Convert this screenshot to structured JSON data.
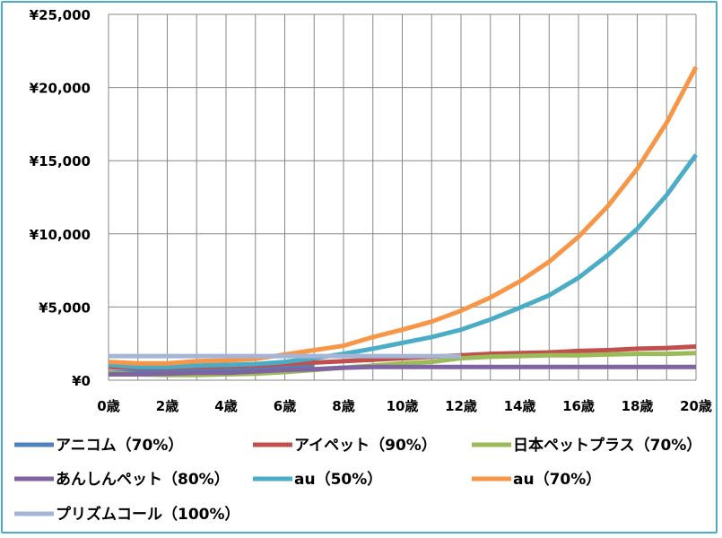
{
  "chart_data": {
    "type": "line",
    "title": "",
    "xlabel": "",
    "ylabel": "",
    "ylim": [
      0,
      25000
    ],
    "x_ticks": [
      "0歳",
      "2歳",
      "4歳",
      "6歳",
      "8歳",
      "10歳",
      "12歳",
      "14歳",
      "16歳",
      "18歳",
      "20歳"
    ],
    "y_ticks": [
      "¥0",
      "¥5,000",
      "¥10,000",
      "¥15,000",
      "¥20,000",
      "¥25,000"
    ],
    "y_tick_values": [
      0,
      5000,
      10000,
      15000,
      20000,
      25000
    ],
    "x": [
      0,
      1,
      2,
      3,
      4,
      5,
      6,
      7,
      8,
      9,
      10,
      11,
      12,
      13,
      14,
      15,
      16,
      17,
      18,
      19,
      20
    ],
    "grid": true,
    "legend_position": "bottom",
    "series": [
      {
        "name": "アニコム（70%）",
        "color": "#4f81bd",
        "values": [
          550,
          550,
          600,
          650,
          700,
          800,
          900,
          1000,
          null,
          null,
          null,
          null,
          null,
          null,
          null,
          null,
          null,
          null,
          null,
          null,
          null
        ]
      },
      {
        "name": "アイペット（90%）",
        "color": "#c0504d",
        "values": [
          900,
          850,
          850,
          900,
          950,
          1000,
          1100,
          1200,
          1300,
          1400,
          1500,
          1600,
          1700,
          1800,
          1850,
          1900,
          2000,
          2050,
          2150,
          2200,
          2300
        ]
      },
      {
        "name": "日本ペットプラス（70%）",
        "color": "#9bbb59",
        "values": [
          500,
          400,
          350,
          350,
          400,
          450,
          550,
          700,
          850,
          1000,
          1150,
          1250,
          1500,
          1600,
          1650,
          1700,
          1700,
          1750,
          1800,
          1800,
          1850
        ]
      },
      {
        "name": "あんしんペット（80%）",
        "color": "#8064a2",
        "values": [
          400,
          400,
          450,
          500,
          500,
          600,
          700,
          750,
          850,
          900,
          900,
          900,
          900,
          900,
          900,
          900,
          900,
          900,
          900,
          900,
          900
        ]
      },
      {
        "name": "au（50%）",
        "color": "#4bacc6",
        "values": [
          1050,
          900,
          900,
          1000,
          1050,
          1100,
          1250,
          1500,
          1800,
          2150,
          2550,
          2950,
          3450,
          4150,
          4950,
          5800,
          7000,
          8550,
          10350,
          12650,
          15400
        ]
      },
      {
        "name": "au（70%）",
        "color": "#f79646",
        "values": [
          1250,
          1150,
          1150,
          1300,
          1350,
          1450,
          1750,
          2050,
          2350,
          2950,
          3450,
          4000,
          4750,
          5650,
          6750,
          8100,
          9800,
          11900,
          14450,
          17600,
          21400
        ]
      },
      {
        "name": "プリズムコール（100%）",
        "color": "#a5b5d6",
        "values": [
          1650,
          1650,
          1650,
          1650,
          1650,
          1650,
          1650,
          1650,
          1650,
          1650,
          1650,
          1650,
          1650,
          null,
          null,
          null,
          null,
          null,
          null,
          null,
          null
        ]
      }
    ]
  }
}
